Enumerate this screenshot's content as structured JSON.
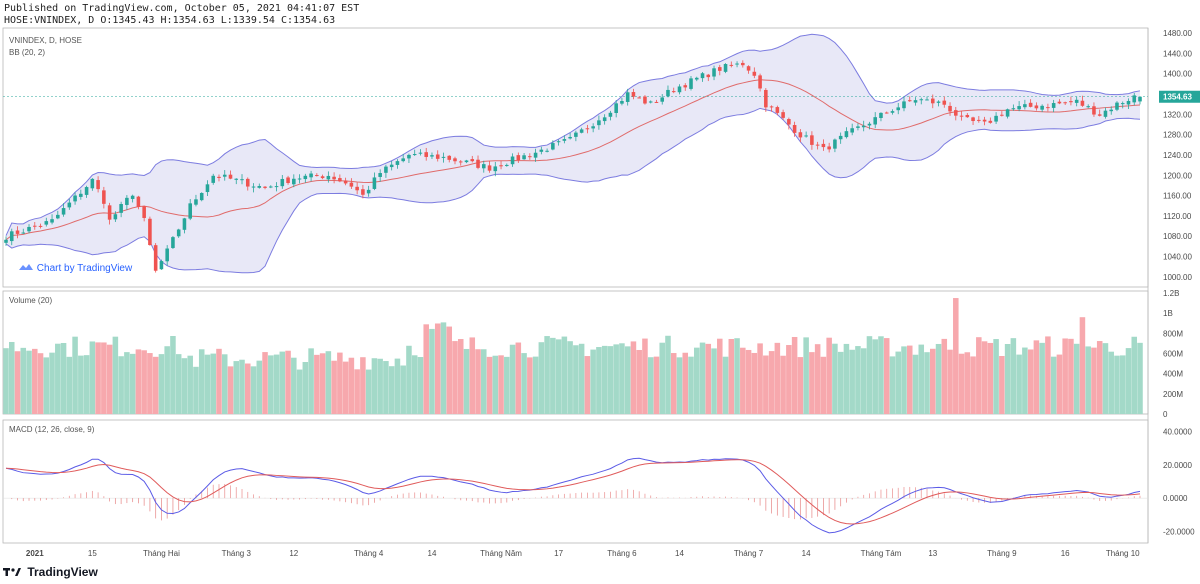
{
  "header": {
    "published": "Published on TradingView.com, October 05, 2021 04:41:07 EST",
    "ohlc": "HOSE:VNINDEX, D O:1345.43 H:1354.63 L:1339.54 C:1354.63"
  },
  "watermark": "Chart by TradingView",
  "footer": {
    "brand": "TradingView"
  },
  "colors": {
    "up": "#26a69a",
    "down": "#ef5350",
    "upVol": "#a3d9c8",
    "downVol": "#f7a8ad",
    "bbBand": "#7c7ce0",
    "bbFill": "#e4e4f6",
    "basis": "#e06b6b",
    "macd": "#5b5be6",
    "signal": "#e05b5b"
  },
  "chart_data": [
    {
      "type": "candlestick",
      "title": "VNINDEX, D, HOSE",
      "indicator": "BB (20, 2)",
      "ylim": [
        980,
        1490
      ],
      "yticks": [
        "1480.00",
        "1440.00",
        "1400.00",
        "1360.00",
        "1320.00",
        "1280.00",
        "1240.00",
        "1200.00",
        "1160.00",
        "1120.00",
        "1080.00",
        "1040.00",
        "1000.00"
      ],
      "last_price": "1354.63",
      "x_labels": [
        "2021",
        "15",
        "Tháng Hai",
        "Tháng 3",
        "12",
        "Tháng 4",
        "14",
        "Tháng Năm",
        "17",
        "Tháng 6",
        "14",
        "Tháng 7",
        "14",
        "Tháng Tám",
        "13",
        "Tháng 9",
        "16",
        "Tháng 10"
      ],
      "x_label_index": [
        5,
        15,
        27,
        40,
        50,
        63,
        74,
        86,
        96,
        107,
        117,
        129,
        139,
        152,
        161,
        173,
        184,
        194
      ],
      "path_anchors": [
        [
          0,
          1080
        ],
        [
          8,
          1110
        ],
        [
          15,
          1190
        ],
        [
          17,
          1150
        ],
        [
          18,
          1110
        ],
        [
          22,
          1165
        ],
        [
          24,
          1110
        ],
        [
          26,
          1010
        ],
        [
          28,
          1050
        ],
        [
          32,
          1140
        ],
        [
          36,
          1200
        ],
        [
          40,
          1190
        ],
        [
          45,
          1175
        ],
        [
          50,
          1195
        ],
        [
          56,
          1200
        ],
        [
          60,
          1180
        ],
        [
          62,
          1160
        ],
        [
          65,
          1205
        ],
        [
          70,
          1240
        ],
        [
          76,
          1235
        ],
        [
          80,
          1225
        ],
        [
          84,
          1215
        ],
        [
          88,
          1230
        ],
        [
          92,
          1245
        ],
        [
          98,
          1270
        ],
        [
          104,
          1320
        ],
        [
          108,
          1360
        ],
        [
          112,
          1340
        ],
        [
          116,
          1370
        ],
        [
          120,
          1390
        ],
        [
          124,
          1410
        ],
        [
          128,
          1420
        ],
        [
          130,
          1400
        ],
        [
          132,
          1340
        ],
        [
          135,
          1310
        ],
        [
          138,
          1280
        ],
        [
          142,
          1250
        ],
        [
          146,
          1280
        ],
        [
          150,
          1305
        ],
        [
          154,
          1330
        ],
        [
          158,
          1350
        ],
        [
          163,
          1340
        ],
        [
          166,
          1310
        ],
        [
          170,
          1300
        ],
        [
          174,
          1330
        ],
        [
          178,
          1335
        ],
        [
          182,
          1340
        ],
        [
          186,
          1345
        ],
        [
          190,
          1320
        ],
        [
          193,
          1340
        ],
        [
          196,
          1355
        ]
      ]
    },
    {
      "type": "bar",
      "title": "Volume (20)",
      "ylim": [
        0,
        1200
      ],
      "yticks": [
        "1.2B",
        "1B",
        "800M",
        "600M",
        "400M",
        "200M",
        "0"
      ],
      "tick_values": [
        1200,
        1000,
        800,
        600,
        400,
        200,
        0
      ]
    },
    {
      "type": "line",
      "title": "MACD (12, 26, close, 9)",
      "ylim": [
        -27,
        47
      ],
      "yticks": [
        "40.0000",
        "20.0000",
        "0.0000",
        "-20.0000"
      ],
      "tick_values": [
        40,
        20,
        0,
        -20
      ]
    }
  ]
}
